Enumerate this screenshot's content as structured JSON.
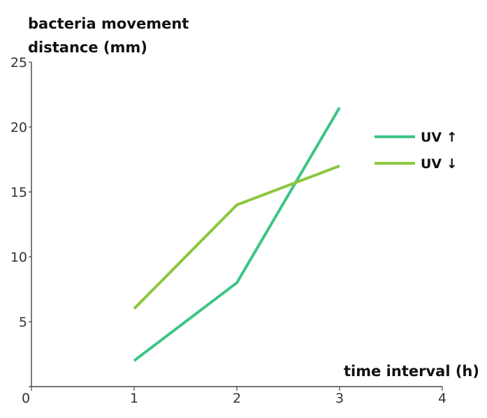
{
  "chart_data": {
    "type": "line",
    "ylabel_lines": [
      "bacteria movement",
      "distance (mm)"
    ],
    "xlabel": "time interval (h)",
    "xlim": [
      0,
      4
    ],
    "ylim": [
      0,
      25
    ],
    "x_ticks": [
      0,
      1,
      2,
      3,
      4
    ],
    "y_ticks": [
      0,
      5,
      10,
      15,
      20,
      25
    ],
    "grid": false,
    "legend_position": "right",
    "series": [
      {
        "name": "UV ↑",
        "color": "#3ec486",
        "x": [
          1,
          2,
          3
        ],
        "values": [
          2,
          8,
          21.5
        ]
      },
      {
        "name": "UV ↓",
        "color": "#8cc63f",
        "x": [
          1,
          2,
          3
        ],
        "values": [
          6,
          14,
          17
        ]
      }
    ]
  }
}
